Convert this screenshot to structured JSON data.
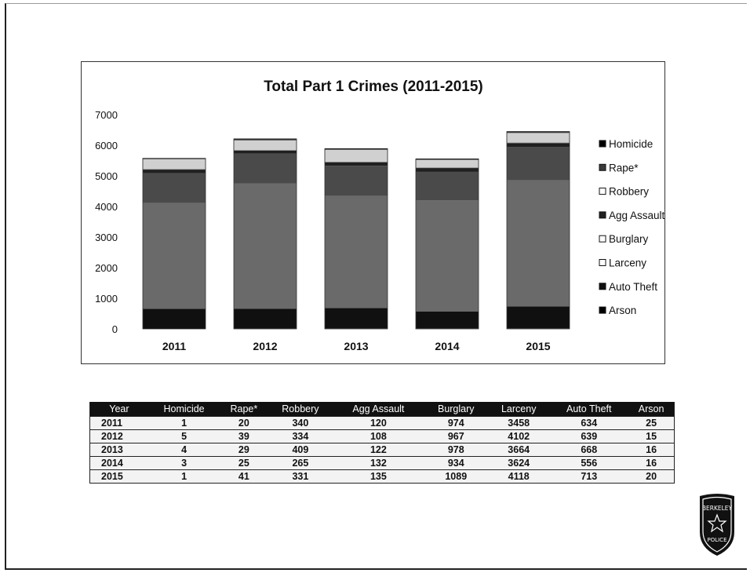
{
  "chart_data": {
    "type": "bar",
    "stacked": true,
    "title": "Total Part 1 Crimes (2011-2015)",
    "categories": [
      "2011",
      "2012",
      "2013",
      "2014",
      "2015"
    ],
    "series": [
      {
        "name": "Homicide",
        "values": [
          1,
          5,
          4,
          3,
          1
        ],
        "color": "#000000"
      },
      {
        "name": "Rape*",
        "values": [
          20,
          39,
          29,
          25,
          41
        ],
        "color": "#3a3a3a"
      },
      {
        "name": "Robbery",
        "values": [
          340,
          334,
          409,
          265,
          331
        ],
        "color": "#d0d0d0"
      },
      {
        "name": "Agg Assault",
        "values": [
          120,
          108,
          122,
          132,
          135
        ],
        "color": "#202020"
      },
      {
        "name": "Burglary",
        "values": [
          974,
          967,
          978,
          934,
          1089
        ],
        "color": "#4a4a4a"
      },
      {
        "name": "Larceny",
        "values": [
          3458,
          4102,
          3664,
          3624,
          4118
        ],
        "color": "#6a6a6a"
      },
      {
        "name": "Auto Theft",
        "values": [
          634,
          639,
          668,
          556,
          713
        ],
        "color": "#101010"
      },
      {
        "name": "Arson",
        "values": [
          25,
          15,
          16,
          16,
          20
        ],
        "color": "#000000"
      }
    ],
    "ylim": [
      0,
      7000
    ],
    "yticks": [
      "0",
      "1000",
      "2000",
      "3000",
      "4000",
      "5000",
      "6000",
      "7000"
    ],
    "legend_position": "right",
    "grid": false
  },
  "table": {
    "headers": [
      "Year",
      "Homicide",
      "Rape*",
      "Robbery",
      "Agg Assault",
      "Burglary",
      "Larceny",
      "Auto Theft",
      "Arson"
    ],
    "rows": [
      [
        "2011",
        "1",
        "20",
        "340",
        "120",
        "974",
        "3458",
        "634",
        "25"
      ],
      [
        "2012",
        "5",
        "39",
        "334",
        "108",
        "967",
        "4102",
        "639",
        "15"
      ],
      [
        "2013",
        "4",
        "29",
        "409",
        "122",
        "978",
        "3664",
        "668",
        "16"
      ],
      [
        "2014",
        "3",
        "25",
        "265",
        "132",
        "934",
        "3624",
        "556",
        "16"
      ],
      [
        "2015",
        "1",
        "41",
        "331",
        "135",
        "1089",
        "4118",
        "713",
        "20"
      ]
    ]
  },
  "logo": {
    "top_text": "BERKELEY",
    "bottom_text": "POLICE"
  }
}
